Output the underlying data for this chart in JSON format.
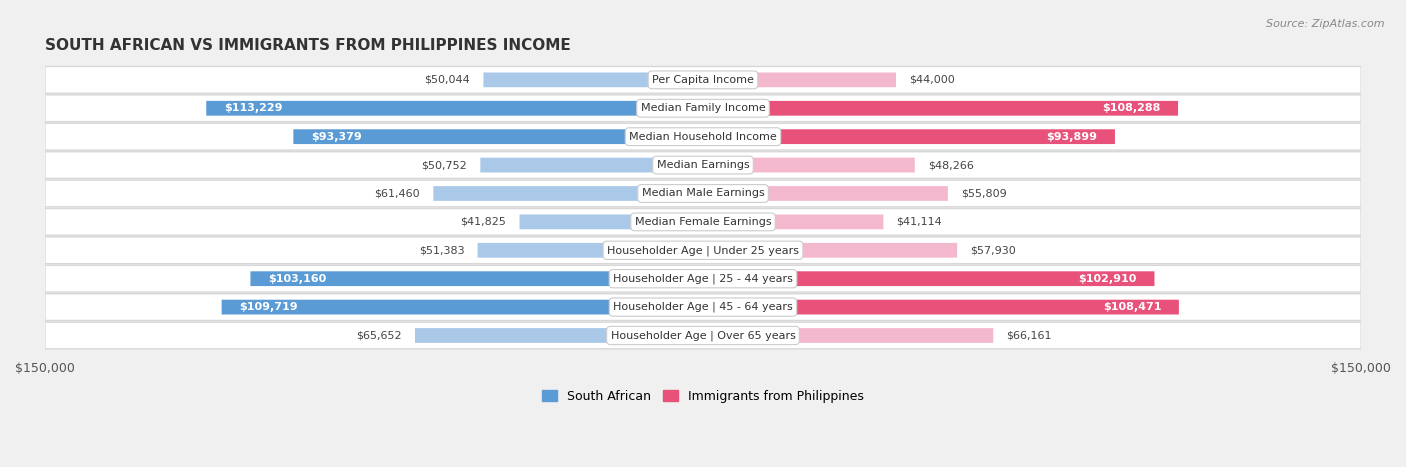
{
  "title": "SOUTH AFRICAN VS IMMIGRANTS FROM PHILIPPINES INCOME",
  "source": "Source: ZipAtlas.com",
  "categories": [
    "Per Capita Income",
    "Median Family Income",
    "Median Household Income",
    "Median Earnings",
    "Median Male Earnings",
    "Median Female Earnings",
    "Householder Age | Under 25 years",
    "Householder Age | 25 - 44 years",
    "Householder Age | 45 - 64 years",
    "Householder Age | Over 65 years"
  ],
  "left_values": [
    50044,
    113229,
    93379,
    50752,
    61460,
    41825,
    51383,
    103160,
    109719,
    65652
  ],
  "right_values": [
    44000,
    108288,
    93899,
    48266,
    55809,
    41114,
    57930,
    102910,
    108471,
    66161
  ],
  "left_labels": [
    "$50,044",
    "$113,229",
    "$93,379",
    "$50,752",
    "$61,460",
    "$41,825",
    "$51,383",
    "$103,160",
    "$109,719",
    "$65,652"
  ],
  "right_labels": [
    "$44,000",
    "$108,288",
    "$93,899",
    "$48,266",
    "$55,809",
    "$41,114",
    "$57,930",
    "$102,910",
    "$108,471",
    "$66,161"
  ],
  "max_val": 150000,
  "left_color_light": "#aac9e8",
  "left_color_dark": "#5b9bd5",
  "right_color_light": "#f4b8ce",
  "right_color_dark": "#e8517a",
  "bg_color": "#f0f0f0",
  "row_bg": "#ffffff",
  "row_border": "#d8d8d8",
  "label_inside_threshold": 75000,
  "legend_left": "South African",
  "legend_right": "Immigrants from Philippines",
  "x_axis_label_left": "$150,000",
  "x_axis_label_right": "$150,000",
  "title_fontsize": 11,
  "source_fontsize": 8,
  "label_fontsize": 8,
  "cat_fontsize": 8
}
